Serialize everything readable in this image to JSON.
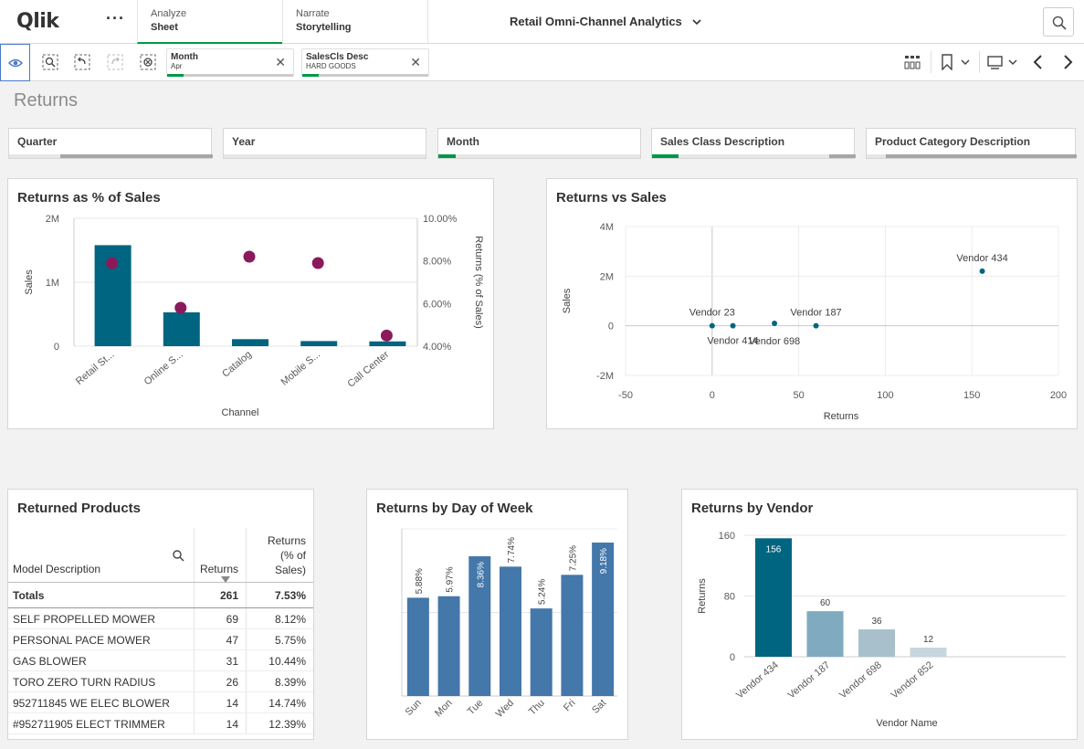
{
  "topbar": {
    "logo": "Qlik",
    "more": "···",
    "tabs": [
      {
        "top": "Analyze",
        "bottom": "Sheet"
      },
      {
        "top": "Narrate",
        "bottom": "Storytelling"
      }
    ],
    "app_title": "Retail Omni-Channel Analytics"
  },
  "selections": [
    {
      "field": "Month",
      "value": "Apr"
    },
    {
      "field": "SalesCls Desc",
      "value": "HARD GOODS"
    }
  ],
  "sheet_title": "Returns",
  "filters": [
    "Quarter",
    "Year",
    "Month",
    "Sales Class Description",
    "Product Category Description"
  ],
  "charts": {
    "returns_pct": {
      "title": "Returns as % of Sales"
    },
    "returns_vs_sales": {
      "title": "Returns vs Sales"
    },
    "returned_products": {
      "title": "Returned Products"
    },
    "day_of_week": {
      "title": "Returns by Day of Week"
    },
    "vendor": {
      "title": "Returns by Vendor"
    }
  },
  "table": {
    "headers": {
      "model": "Model Description",
      "returns": "Returns",
      "pct_line1": "Returns",
      "pct_line2": "(% of",
      "pct_line3": "Sales)"
    },
    "totals": {
      "label": "Totals",
      "returns": "261",
      "pct": "7.53%"
    },
    "rows": [
      {
        "model": "SELF PROPELLED MOWER",
        "returns": "69",
        "pct": "8.12%"
      },
      {
        "model": "PERSONAL PACE MOWER",
        "returns": "47",
        "pct": "5.75%"
      },
      {
        "model": "GAS BLOWER",
        "returns": "31",
        "pct": "10.44%"
      },
      {
        "model": "TORO ZERO TURN RADIUS",
        "returns": "26",
        "pct": "8.39%"
      },
      {
        "model": "952711845 WE ELEC BLOWER",
        "returns": "14",
        "pct": "14.74%"
      },
      {
        "model": "#952711905 ELECT TRIMMER",
        "returns": "14",
        "pct": "12.39%"
      }
    ]
  },
  "chart_data": [
    {
      "id": "returns_pct",
      "type": "bar",
      "title": "Returns as % of Sales",
      "xlabel": "Channel",
      "ylabel": "Sales",
      "y2label": "Returns (% of Sales)",
      "categories": [
        "Retail St...",
        "Online S...",
        "Catalog",
        "Mobile S...",
        "Call Center"
      ],
      "y_ticks": [
        "2M",
        "1M",
        "0"
      ],
      "y2_ticks": [
        "10.00%",
        "8.00%",
        "6.00%",
        "4.00%"
      ],
      "ylim": [
        0,
        2000000
      ],
      "y2lim": [
        4,
        10
      ],
      "series": [
        {
          "name": "Sales",
          "kind": "bar",
          "values": [
            1580000,
            530000,
            110000,
            80000,
            75000
          ]
        },
        {
          "name": "Returns (% of Sales)",
          "kind": "point",
          "values": [
            7.9,
            5.8,
            8.2,
            7.9,
            4.5
          ]
        }
      ]
    },
    {
      "id": "returns_vs_sales",
      "type": "scatter",
      "title": "Returns vs Sales",
      "xlabel": "Returns",
      "ylabel": "Sales",
      "xlim": [
        -50,
        200
      ],
      "ylim": [
        -2000000,
        4000000
      ],
      "x_ticks": [
        "-50",
        "0",
        "50",
        "100",
        "150",
        "200"
      ],
      "y_ticks": [
        "4M",
        "2M",
        "0",
        "-2M"
      ],
      "points": [
        {
          "label": "Vendor 23",
          "x": 0,
          "y": 0
        },
        {
          "label": "Vendor 414",
          "x": 12,
          "y": 0
        },
        {
          "label": "Vendor 698",
          "x": 36,
          "y": 100000
        },
        {
          "label": "Vendor 187",
          "x": 60,
          "y": 0
        },
        {
          "label": "Vendor 434",
          "x": 156,
          "y": 2200000
        }
      ]
    },
    {
      "id": "day_of_week",
      "type": "bar",
      "title": "Returns by Day of Week",
      "categories": [
        "Sun",
        "Mon",
        "Tue",
        "Wed",
        "Thu",
        "Fri",
        "Sat"
      ],
      "values": [
        5.88,
        5.97,
        8.36,
        7.74,
        5.24,
        7.25,
        9.18
      ],
      "labels": [
        "5.88%",
        "5.97%",
        "8.36%",
        "7.74%",
        "5.24%",
        "7.25%",
        "9.18%"
      ],
      "ylim": [
        0,
        10
      ]
    },
    {
      "id": "vendor",
      "type": "bar",
      "title": "Returns by Vendor",
      "xlabel": "Vendor Name",
      "ylabel": "Returns",
      "categories": [
        "Vendor 434",
        "Vendor 187",
        "Vendor 698",
        "Vendor 852"
      ],
      "values": [
        156,
        60,
        36,
        12
      ],
      "y_ticks": [
        "160",
        "80",
        "0"
      ],
      "ylim": [
        0,
        160
      ],
      "colors": [
        "#006580",
        "#80aabf",
        "#a8c0cc",
        "#c8d6de"
      ]
    }
  ]
}
